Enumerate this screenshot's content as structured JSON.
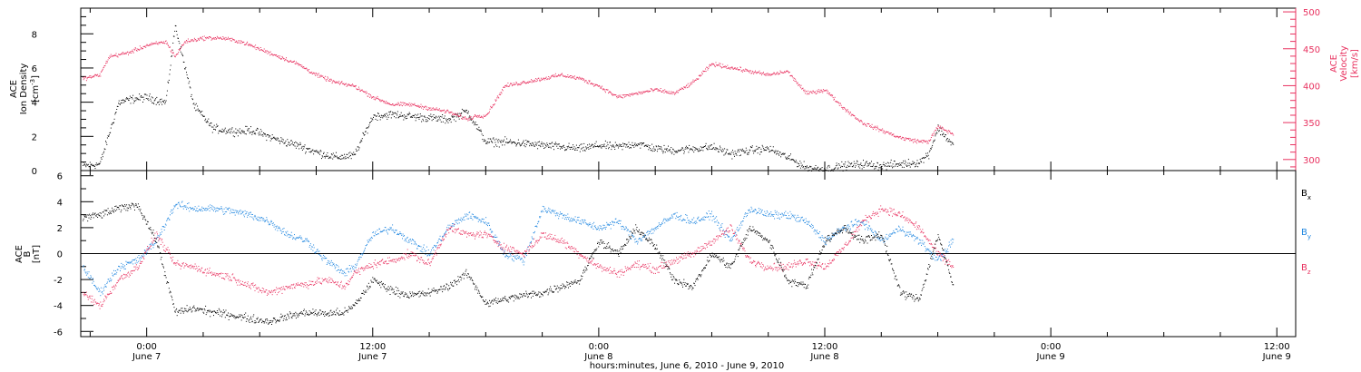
{
  "colors": {
    "black": "#000000",
    "pink": "#e8315f",
    "blue": "#1f86e0",
    "frame": "#000000"
  },
  "chart_data": [
    {
      "type": "scatter",
      "xlabel": "hours:minutes, June  6, 2010 - June  9, 2010",
      "x_ticks": [
        {
          "time": "0:00",
          "date": "June 7"
        },
        {
          "time": "12:00",
          "date": "June 7"
        },
        {
          "time": "0:00",
          "date": "June 8"
        },
        {
          "time": "12:00",
          "date": "June 8"
        },
        {
          "time": "0:00",
          "date": "June 9"
        },
        {
          "time": "12:00",
          "date": "June 9"
        }
      ],
      "x_unit": "hours since June 6 0:00",
      "xlim": [
        20.5,
        85
      ],
      "data_end_hour": 66.8
    },
    {
      "type": "scatter",
      "panel": "top",
      "left_axis": {
        "label": [
          "ACE",
          "Ion Density",
          "[cm",
          "-3",
          "]"
        ],
        "ylim": [
          0,
          9.5
        ],
        "ticks": [
          "0",
          "2",
          "4",
          "6",
          "8"
        ]
      },
      "right_axis": {
        "label": [
          "ACE",
          "Velocity",
          "[km/s]"
        ],
        "ylim": [
          285,
          505
        ],
        "ticks": [
          "300",
          "350",
          "400",
          "450",
          "500"
        ]
      },
      "series": [
        {
          "axis": "left",
          "color": "black",
          "x": [
            20.6,
            21.5,
            22.5,
            23.2,
            24,
            25,
            25.5,
            26.5,
            27.5,
            28,
            29,
            29.5,
            31,
            32,
            33,
            34,
            35,
            36,
            37,
            38,
            39,
            40,
            41,
            42,
            43,
            44,
            45,
            46,
            47,
            48,
            49,
            50,
            51,
            52,
            53,
            54,
            55,
            56,
            57,
            58,
            59,
            60,
            61,
            62,
            63,
            64,
            65,
            65.5,
            66,
            66.8
          ],
          "y": [
            0.3,
            0.4,
            4,
            4.2,
            4.3,
            4,
            8.5,
            3.8,
            2.5,
            2.4,
            2.3,
            2.4,
            1.8,
            1.5,
            1.1,
            0.8,
            0.9,
            3.2,
            3.3,
            3.2,
            3.1,
            3,
            3.5,
            1.7,
            1.7,
            1.6,
            1.5,
            1.4,
            1.3,
            1.5,
            1.4,
            1.6,
            1.3,
            1.2,
            1.3,
            1.4,
            1,
            1.2,
            1.3,
            0.8,
            0.2,
            0.1,
            0.3,
            0.4,
            0.3,
            0.4,
            0.5,
            1,
            2.5,
            1.5
          ]
        },
        {
          "axis": "right",
          "color": "pink",
          "x": [
            20.6,
            21.5,
            22,
            23,
            24,
            25,
            25.5,
            26,
            27,
            28,
            29,
            29.5,
            31,
            32,
            33,
            34,
            35,
            36,
            37,
            38,
            39,
            40,
            41,
            41.5,
            42,
            43,
            44,
            45,
            46,
            47,
            48,
            49,
            50,
            51,
            52,
            53,
            54,
            55,
            56,
            57,
            58,
            59,
            60,
            61,
            62,
            63,
            64,
            65,
            65.5,
            66,
            66.8
          ],
          "y": [
            410,
            415,
            440,
            445,
            455,
            460,
            440,
            460,
            465,
            465,
            460,
            455,
            440,
            430,
            415,
            405,
            400,
            385,
            375,
            375,
            370,
            365,
            355,
            360,
            360,
            400,
            405,
            410,
            415,
            410,
            400,
            385,
            390,
            395,
            390,
            405,
            430,
            425,
            420,
            415,
            420,
            390,
            395,
            370,
            350,
            340,
            330,
            325,
            325,
            345,
            335
          ]
        }
      ]
    },
    {
      "type": "scatter",
      "panel": "bottom",
      "left_axis": {
        "label": [
          "ACE",
          "B",
          "[nT]"
        ],
        "ylim": [
          -6.4,
          6.4
        ],
        "ticks": [
          "-6",
          "-4",
          "-2",
          "0",
          "2",
          "4",
          "6"
        ]
      },
      "legend": [
        {
          "text": "B",
          "sub": "x",
          "color": "black"
        },
        {
          "text": "B",
          "sub": "y",
          "color": "blue"
        },
        {
          "text": "B",
          "sub": "z",
          "color": "pink"
        }
      ],
      "series": [
        {
          "name": "Bx",
          "color": "black",
          "x": [
            20.6,
            21.5,
            22.5,
            23.5,
            24.5,
            25.5,
            26.5,
            27.5,
            28.5,
            29.5,
            30.5,
            31.5,
            32.5,
            33.5,
            34.5,
            35,
            36,
            37,
            38,
            39,
            40,
            41,
            42,
            43,
            44,
            45,
            46,
            47,
            48,
            49,
            50,
            51,
            52,
            53,
            54,
            55,
            56,
            57,
            58,
            59,
            60,
            61,
            62,
            63,
            64,
            65,
            66,
            66.8
          ],
          "y": [
            2.8,
            3,
            3.5,
            3.8,
            1,
            -4.5,
            -4.2,
            -4.5,
            -4.7,
            -5,
            -5.2,
            -4.8,
            -4.5,
            -4.6,
            -4.5,
            -4,
            -2,
            -2.8,
            -3.2,
            -3,
            -2.5,
            -1.5,
            -3.8,
            -3.5,
            -3.2,
            -3,
            -2.5,
            -2,
            1,
            0,
            2,
            0.5,
            -2,
            -2.5,
            0,
            -1,
            2,
            1,
            -2,
            -2.5,
            1,
            2,
            1,
            1.5,
            -3,
            -3.5,
            1.5,
            -2.5
          ]
        },
        {
          "name": "By",
          "color": "blue",
          "x": [
            20.6,
            21.5,
            22.5,
            23.5,
            24.5,
            25.5,
            26.5,
            27.5,
            28.5,
            29.5,
            30.5,
            31.5,
            32.5,
            33.5,
            34.5,
            35,
            36,
            37,
            38,
            39,
            40,
            41,
            42,
            43,
            44,
            45,
            46,
            47,
            48,
            49,
            50,
            51,
            52,
            53,
            54,
            55,
            56,
            57,
            58,
            59,
            60,
            61,
            62,
            63,
            64,
            65,
            66,
            66.8
          ],
          "y": [
            -1,
            -3,
            -1,
            -0.5,
            1,
            3.8,
            3.5,
            3.5,
            3.3,
            3,
            2.5,
            1.5,
            1,
            -0.5,
            -1.5,
            -1,
            1.5,
            2,
            1,
            0,
            2,
            3,
            2.5,
            0,
            -0.5,
            3.5,
            3,
            2.5,
            2,
            2.5,
            1,
            2,
            3,
            2.5,
            3,
            1,
            3.5,
            3,
            3,
            2.5,
            1,
            2,
            2.5,
            1,
            2,
            1,
            -0.5,
            1
          ]
        },
        {
          "name": "Bz",
          "color": "pink",
          "x": [
            20.6,
            21.5,
            22.5,
            23.5,
            24.5,
            25.5,
            26.5,
            27.5,
            28.5,
            29.5,
            30.5,
            31.5,
            32.5,
            33.5,
            34.5,
            35,
            36,
            37,
            38,
            39,
            40,
            41,
            42,
            43,
            44,
            45,
            46,
            47,
            48,
            49,
            50,
            51,
            52,
            53,
            54,
            55,
            56,
            57,
            58,
            59,
            60,
            61,
            62,
            63,
            64,
            65,
            66,
            66.8
          ],
          "y": [
            -3,
            -4,
            -2,
            -1,
            1.5,
            -0.8,
            -1,
            -1.5,
            -1.8,
            -2.5,
            -3,
            -2.5,
            -2.3,
            -2,
            -2.5,
            -1.5,
            -0.8,
            -0.5,
            0,
            -0.8,
            2,
            1.5,
            1.5,
            0.5,
            0,
            1.5,
            1,
            0,
            -1,
            -1.5,
            -0.8,
            -1.2,
            -0.5,
            0,
            1,
            2,
            -0.5,
            -1,
            -1,
            -0.5,
            -1,
            0.5,
            2.5,
            3.5,
            3,
            2,
            0,
            -1
          ]
        }
      ]
    }
  ]
}
